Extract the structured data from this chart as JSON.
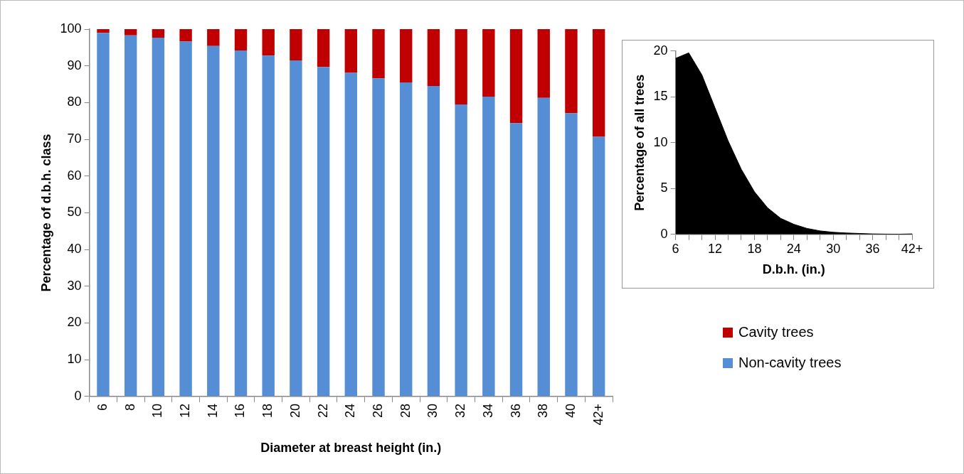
{
  "chart_data": [
    {
      "type": "bar",
      "stacked": true,
      "xlabel": "Diameter at breast height (in.)",
      "ylabel": "Percentage of d.b.h. class",
      "categories": [
        "6",
        "8",
        "10",
        "12",
        "14",
        "16",
        "18",
        "20",
        "22",
        "24",
        "26",
        "28",
        "30",
        "32",
        "34",
        "36",
        "38",
        "40",
        "42+"
      ],
      "series": [
        {
          "name": "Non-cavity trees",
          "color": "#558ed5",
          "values": [
            99.0,
            98.3,
            97.7,
            96.6,
            95.4,
            94.2,
            92.8,
            91.5,
            89.7,
            88.1,
            86.6,
            85.5,
            84.5,
            79.5,
            81.6,
            74.4,
            81.3,
            77.1,
            70.7
          ]
        },
        {
          "name": "Cavity trees",
          "color": "#c00000",
          "values": [
            1.0,
            1.7,
            2.3,
            3.4,
            4.6,
            5.8,
            7.2,
            8.5,
            10.3,
            11.9,
            13.4,
            14.5,
            15.5,
            20.5,
            18.4,
            25.6,
            18.7,
            22.9,
            29.3
          ]
        }
      ],
      "ylim": [
        0,
        100
      ],
      "yticks": [
        0,
        10,
        20,
        30,
        40,
        50,
        60,
        70,
        80,
        90,
        100
      ],
      "grid": false,
      "legend": "right"
    },
    {
      "type": "area",
      "xlabel": "D.b.h. (in.)",
      "ylabel": "Percentage of all trees",
      "categories": [
        "6",
        null,
        null,
        "12",
        null,
        null,
        "18",
        null,
        null,
        "24",
        null,
        null,
        "30",
        null,
        null,
        "36",
        null,
        null,
        "42+"
      ],
      "series": [
        {
          "color": "#000000",
          "values": [
            19.2,
            19.8,
            17.4,
            13.8,
            10.2,
            7.1,
            4.65,
            2.9,
            1.75,
            1.1,
            0.65,
            0.38,
            0.23,
            0.15,
            0.1,
            0.05,
            0.03,
            0.02,
            0.05
          ]
        }
      ],
      "ylim": [
        0,
        20
      ],
      "yticks": [
        0,
        5,
        10,
        15,
        20
      ],
      "grid": false,
      "legend": false,
      "marker": "none"
    }
  ]
}
